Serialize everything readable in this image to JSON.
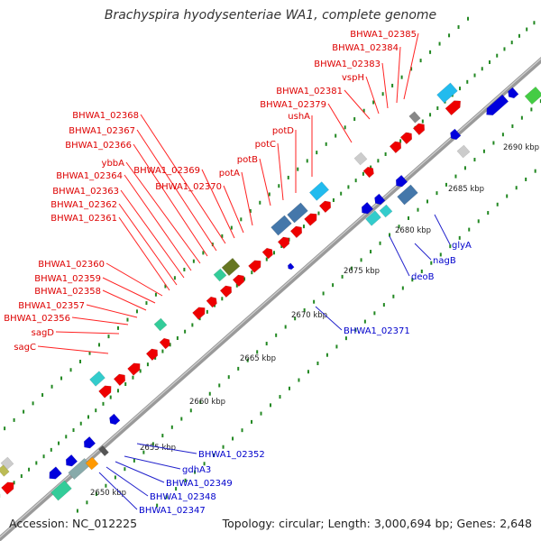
{
  "title": "Brachyspira hyodysenteriae WA1, complete genome",
  "footer": {
    "accession": "Accession: NC_012225",
    "summary": "Topology: circular; Length: 3,000,694 bp; Genes: 2,648"
  },
  "colors": {
    "backbone": "#888888",
    "forward_label": "#dd0000",
    "reverse_label": "#0000cc",
    "forward_gene": "#ee0000",
    "reverse_gene": "#0000dd",
    "rna": "#33cccc",
    "tick_dot": "#228822"
  },
  "ticks": [
    "2650 kbp",
    "2655 kbp",
    "2660 kbp",
    "2665 kbp",
    "2670 kbp",
    "2675 kbp",
    "2680 kbp",
    "2685 kbp",
    "2690 kbp"
  ],
  "forward_labels": [
    "BHWA1_02385",
    "BHWA1_02384",
    "BHWA1_02383",
    "vspH",
    "BHWA1_02381",
    "BHWA1_02379",
    "ushA",
    "potD",
    "potC",
    "potB",
    "potA",
    "BHWA1_02370",
    "BHWA1_02369",
    "BHWA1_02368",
    "BHWA1_02367",
    "BHWA1_02366",
    "ybbA",
    "BHWA1_02364",
    "BHWA1_02363",
    "BHWA1_02362",
    "BHWA1_02361",
    "BHWA1_02360",
    "BHWA1_02359",
    "BHWA1_02358",
    "BHWA1_02357",
    "BHWA1_02356",
    "sagD",
    "sagC"
  ],
  "reverse_labels": [
    "glyA",
    "nagB",
    "deoB",
    "BHWA1_02371",
    "BHWA1_02352",
    "gdhA3",
    "BHWA1_02349",
    "BHWA1_02348",
    "BHWA1_02347"
  ]
}
